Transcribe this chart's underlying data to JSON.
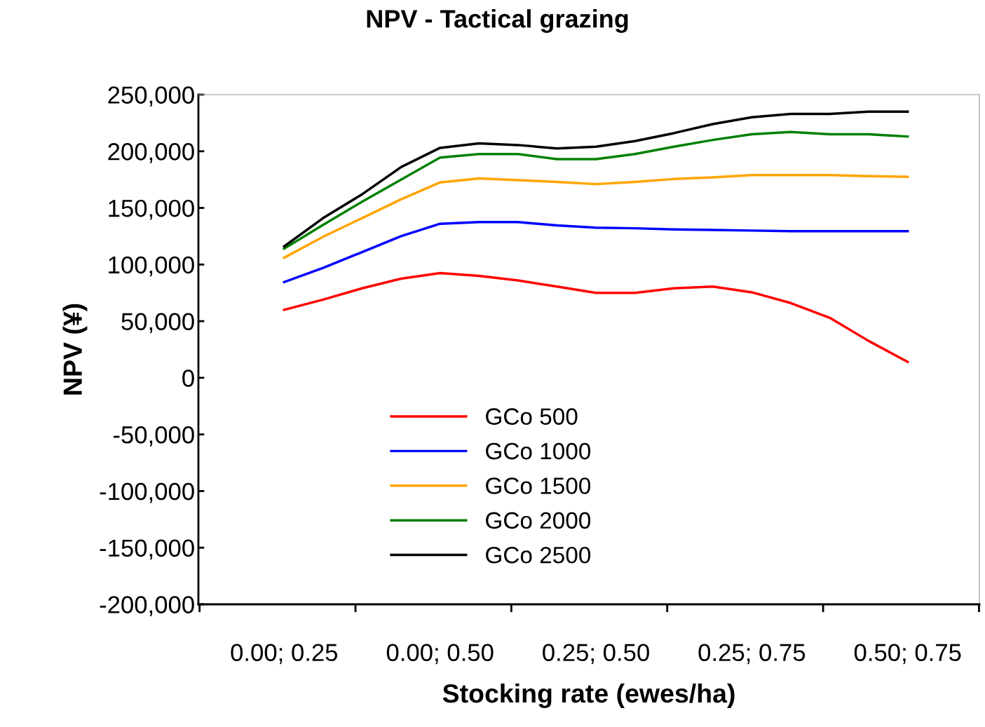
{
  "chart_data": {
    "type": "line",
    "title": "NPV - Tactical grazing",
    "xlabel": "Stocking rate (ewes/ha)",
    "ylabel": "NPV (¥)",
    "categories": [
      "0.00; 0.25",
      null,
      null,
      null,
      "0.00; 0.50",
      null,
      null,
      null,
      "0.25; 0.50",
      null,
      null,
      null,
      "0.25; 0.75",
      null,
      null,
      null,
      "0.50; 0.75"
    ],
    "series": [
      {
        "name": "GCo 500",
        "color": "#ff0000",
        "values": [
          60000,
          69000,
          79000,
          87500,
          92500,
          90000,
          86000,
          80500,
          75000,
          75000,
          79000,
          80500,
          75500,
          66000,
          53000,
          32500,
          14000
        ]
      },
      {
        "name": "GCo 1000",
        "color": "#0000ff",
        "values": [
          84500,
          97000,
          111000,
          125000,
          136000,
          137500,
          137500,
          134500,
          132500,
          132000,
          131000,
          130500,
          130000,
          129500,
          129500,
          129500,
          129500
        ]
      },
      {
        "name": "GCo 1500",
        "color": "#ffa500",
        "values": [
          106000,
          124500,
          141000,
          157500,
          172500,
          176000,
          174500,
          173000,
          171000,
          173000,
          175500,
          177000,
          179000,
          179000,
          179000,
          178000,
          177500
        ]
      },
      {
        "name": "GCo 2000",
        "color": "#008000",
        "values": [
          114000,
          135000,
          155500,
          175000,
          194500,
          197500,
          197500,
          193000,
          193000,
          197500,
          204000,
          210000,
          215000,
          217000,
          215000,
          215000,
          213000
        ]
      },
      {
        "name": "GCo 2500",
        "color": "#000000",
        "values": [
          116000,
          141000,
          162000,
          186000,
          203000,
          207000,
          205500,
          202500,
          204000,
          209000,
          216000,
          224000,
          230000,
          233000,
          233000,
          235000,
          235000
        ]
      }
    ],
    "ylim": [
      -200000,
      250000
    ],
    "yticks": [
      {
        "value": -200000,
        "label": "-200,000"
      },
      {
        "value": -150000,
        "label": "-150,000"
      },
      {
        "value": -100000,
        "label": "-100,000"
      },
      {
        "value": -50000,
        "label": "-50,000"
      },
      0,
      {
        "value": 50000,
        "label": "50,000"
      },
      {
        "value": 100000,
        "label": "100,000"
      },
      {
        "value": 150000,
        "label": "150,000"
      },
      {
        "value": 200000,
        "label": "200,000"
      },
      {
        "value": 250000,
        "label": "250,000"
      }
    ],
    "grid": false,
    "legend": "bottom left",
    "marker": "none",
    "line_style": "solid"
  }
}
